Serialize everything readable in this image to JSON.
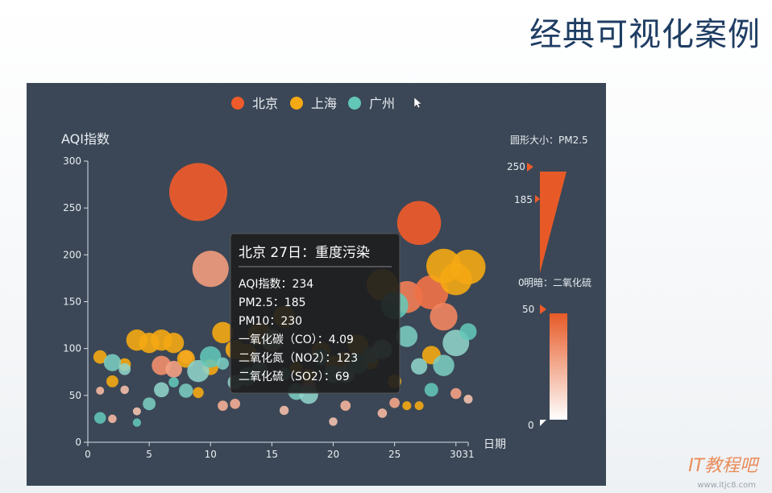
{
  "slide": {
    "title": "经典可视化案例",
    "watermark": "IT教程吧",
    "watermark_url": "www.itjc8.com"
  },
  "chart_data": {
    "type": "scatter",
    "background": "#3b4756",
    "legend": {
      "placement": "top",
      "entries": [
        {
          "name": "北京",
          "color": "#ef5b2a"
        },
        {
          "name": "上海",
          "color": "#f5a913"
        },
        {
          "name": "广州",
          "color": "#63c7b8"
        }
      ]
    },
    "ylabel": "AQI指数",
    "xlabel": "日期",
    "xlim": [
      0,
      31
    ],
    "ylim": [
      0,
      300
    ],
    "x_ticks": [
      "0",
      "5",
      "10",
      "15",
      "20",
      "25",
      "30",
      "31"
    ],
    "y_ticks": [
      "0",
      "50",
      "100",
      "150",
      "200",
      "250",
      "300"
    ],
    "size_legend": {
      "title": "圆形大小：PM2.5",
      "max": "250",
      "min": "185"
    },
    "color_legend": {
      "title": "明暗：二氧化硫",
      "max": "50",
      "min": "0",
      "start_label": "0"
    },
    "series": [
      {
        "name": "北京",
        "color": "#ef5b2a",
        "points": [
          {
            "x": 1,
            "y": 55,
            "pm25": 20,
            "so2": 10
          },
          {
            "x": 2,
            "y": 25,
            "pm25": 22,
            "so2": 10
          },
          {
            "x": 3,
            "y": 56,
            "pm25": 22,
            "so2": 8
          },
          {
            "x": 4,
            "y": 33,
            "pm25": 20,
            "so2": 5
          },
          {
            "x": 6,
            "y": 82,
            "pm25": 72,
            "so2": 28
          },
          {
            "x": 7,
            "y": 78,
            "pm25": 60,
            "so2": 20
          },
          {
            "x": 8,
            "y": 91,
            "pm25": 45,
            "so2": 15
          },
          {
            "x": 9,
            "y": 267,
            "pm25": 250,
            "so2": 50
          },
          {
            "x": 10,
            "y": 185,
            "pm25": 150,
            "so2": 22
          },
          {
            "x": 11,
            "y": 39,
            "pm25": 30,
            "so2": 14
          },
          {
            "x": 12,
            "y": 41,
            "pm25": 30,
            "so2": 15
          },
          {
            "x": 16,
            "y": 34,
            "pm25": 25,
            "so2": 8
          },
          {
            "x": 18,
            "y": 60,
            "pm25": 44,
            "so2": 14
          },
          {
            "x": 20,
            "y": 22,
            "pm25": 22,
            "so2": 6
          },
          {
            "x": 21,
            "y": 39,
            "pm25": 30,
            "so2": 12
          },
          {
            "x": 24,
            "y": 31,
            "pm25": 26,
            "so2": 10
          },
          {
            "x": 25,
            "y": 42,
            "pm25": 30,
            "so2": 18
          },
          {
            "x": 26,
            "y": 155,
            "pm25": 130,
            "so2": 35
          },
          {
            "x": 27,
            "y": 234,
            "pm25": 185,
            "so2": 50
          },
          {
            "x": 28,
            "y": 160,
            "pm25": 140,
            "so2": 40
          },
          {
            "x": 29,
            "y": 134,
            "pm25": 110,
            "so2": 32
          },
          {
            "x": 30,
            "y": 52,
            "pm25": 33,
            "so2": 20
          },
          {
            "x": 31,
            "y": 46,
            "pm25": 24,
            "so2": 6
          }
        ]
      },
      {
        "name": "上海",
        "color": "#f5a913",
        "points": [
          {
            "x": 1,
            "y": 91,
            "pm25": 45
          },
          {
            "x": 2,
            "y": 65,
            "pm25": 38
          },
          {
            "x": 3,
            "y": 83,
            "pm25": 40
          },
          {
            "x": 4,
            "y": 109,
            "pm25": 81
          },
          {
            "x": 5,
            "y": 106,
            "pm25": 77
          },
          {
            "x": 6,
            "y": 109,
            "pm25": 81
          },
          {
            "x": 7,
            "y": 106,
            "pm25": 77
          },
          {
            "x": 8,
            "y": 89,
            "pm25": 65
          },
          {
            "x": 9,
            "y": 53,
            "pm25": 33
          },
          {
            "x": 10,
            "y": 80,
            "pm25": 55
          },
          {
            "x": 11,
            "y": 117,
            "pm25": 81
          },
          {
            "x": 12,
            "y": 99,
            "pm25": 71
          },
          {
            "x": 13,
            "y": 95,
            "pm25": 69
          },
          {
            "x": 14,
            "y": 116,
            "pm25": 87
          },
          {
            "x": 15,
            "y": 108,
            "pm25": 80
          },
          {
            "x": 16,
            "y": 134,
            "pm25": 83
          },
          {
            "x": 17,
            "y": 79,
            "pm25": 43
          },
          {
            "x": 18,
            "y": 71,
            "pm25": 46
          },
          {
            "x": 19,
            "y": 97,
            "pm25": 71
          },
          {
            "x": 20,
            "y": 84,
            "pm25": 57
          },
          {
            "x": 21,
            "y": 87,
            "pm25": 63
          },
          {
            "x": 22,
            "y": 104,
            "pm25": 77
          },
          {
            "x": 23,
            "y": 87,
            "pm25": 62
          },
          {
            "x": 24,
            "y": 168,
            "pm25": 128
          },
          {
            "x": 25,
            "y": 65,
            "pm25": 45
          },
          {
            "x": 26,
            "y": 39,
            "pm25": 24
          },
          {
            "x": 27,
            "y": 39,
            "pm25": 24
          },
          {
            "x": 28,
            "y": 93,
            "pm25": 68
          },
          {
            "x": 29,
            "y": 188,
            "pm25": 143
          },
          {
            "x": 30,
            "y": 174,
            "pm25": 131
          },
          {
            "x": 31,
            "y": 187,
            "pm25": 143
          }
        ]
      },
      {
        "name": "广州",
        "color": "#63c7b8",
        "points": [
          {
            "x": 1,
            "y": 26,
            "pm25": 37
          },
          {
            "x": 2,
            "y": 85,
            "pm25": 62
          },
          {
            "x": 3,
            "y": 78,
            "pm25": 38
          },
          {
            "x": 4,
            "y": 21,
            "pm25": 21
          },
          {
            "x": 5,
            "y": 41,
            "pm25": 42
          },
          {
            "x": 6,
            "y": 56,
            "pm25": 52
          },
          {
            "x": 7,
            "y": 64,
            "pm25": 30
          },
          {
            "x": 8,
            "y": 55,
            "pm25": 48
          },
          {
            "x": 9,
            "y": 76,
            "pm25": 85
          },
          {
            "x": 10,
            "y": 91,
            "pm25": 81
          },
          {
            "x": 11,
            "y": 84,
            "pm25": 39
          },
          {
            "x": 12,
            "y": 64,
            "pm25": 51
          },
          {
            "x": 13,
            "y": 70,
            "pm25": 69
          },
          {
            "x": 14,
            "y": 77,
            "pm25": 55
          },
          {
            "x": 15,
            "y": 109,
            "pm25": 81
          },
          {
            "x": 16,
            "y": 73,
            "pm25": 42
          },
          {
            "x": 17,
            "y": 54,
            "pm25": 59
          },
          {
            "x": 18,
            "y": 51,
            "pm25": 70
          },
          {
            "x": 19,
            "y": 91,
            "pm25": 59
          },
          {
            "x": 20,
            "y": 73,
            "pm25": 68
          },
          {
            "x": 21,
            "y": 73,
            "pm25": 68
          },
          {
            "x": 22,
            "y": 84,
            "pm25": 79
          },
          {
            "x": 23,
            "y": 93,
            "pm25": 59
          },
          {
            "x": 24,
            "y": 99,
            "pm25": 73
          },
          {
            "x": 25,
            "y": 146,
            "pm25": 109
          },
          {
            "x": 26,
            "y": 113,
            "pm25": 81
          },
          {
            "x": 27,
            "y": 81,
            "pm25": 58
          },
          {
            "x": 28,
            "y": 56,
            "pm25": 46
          },
          {
            "x": 29,
            "y": 82,
            "pm25": 81
          },
          {
            "x": 30,
            "y": 106,
            "pm25": 105
          },
          {
            "x": 31,
            "y": 118,
            "pm25": 61
          }
        ]
      }
    ],
    "tooltip": {
      "title": "北京 27日：重度污染",
      "lines": [
        "AQI指数：234",
        "PM2.5：185",
        "PM10：230",
        "一氧化碳（CO）：4.09",
        "二氧化氮（NO2）：123",
        "二氧化硫（SO2）：69"
      ]
    }
  }
}
